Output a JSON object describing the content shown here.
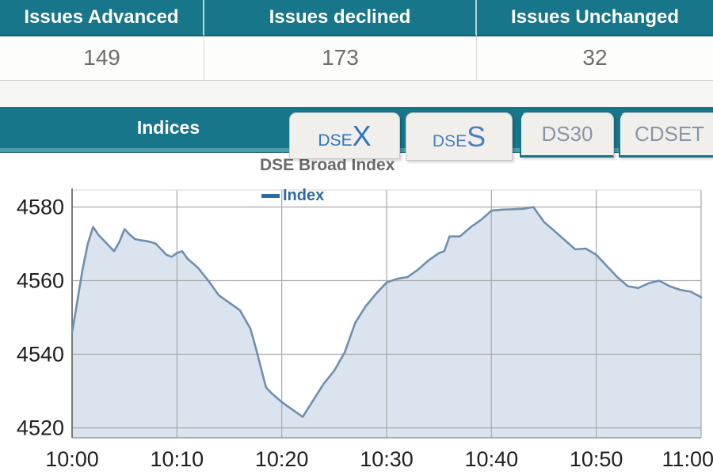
{
  "issues_table": {
    "columns": [
      {
        "header": "Issues Advanced",
        "value": "149"
      },
      {
        "header": "Issues declined",
        "value": "173"
      },
      {
        "header": "Issues Unchanged",
        "value": "32"
      }
    ]
  },
  "indices": {
    "bar_label": "Indices",
    "tabs": [
      {
        "label": "DSEX",
        "prefix": "DSE",
        "big": "X",
        "active": true
      },
      {
        "label": "DSES",
        "prefix": "DSE",
        "big": "S",
        "active": false
      },
      {
        "label": "DS30",
        "active": false
      },
      {
        "label": "CDSET",
        "active": false
      }
    ]
  },
  "chart_data": {
    "type": "area",
    "title": "DSE Broad Index",
    "legend_label": "Index",
    "legend_position": "top-left-inside",
    "grid": true,
    "xlabel": "",
    "ylabel": "",
    "x_tick_labels": [
      "10:00",
      "10:10",
      "10:20",
      "10:30",
      "10:40",
      "10:50",
      "11:00"
    ],
    "x_tick_minutes": [
      0,
      10,
      20,
      30,
      40,
      50,
      60
    ],
    "y_ticks": [
      4520,
      4540,
      4560,
      4580
    ],
    "ylim": [
      4516.5,
      4584.5
    ],
    "xlim_minutes": [
      0,
      60
    ],
    "series": [
      {
        "name": "Index",
        "points": [
          [
            0,
            4546
          ],
          [
            0.3,
            4551
          ],
          [
            0.7,
            4558
          ],
          [
            1,
            4563
          ],
          [
            1.5,
            4570
          ],
          [
            2,
            4574.6
          ],
          [
            2.5,
            4572.5
          ],
          [
            3,
            4571
          ],
          [
            3.5,
            4569.5
          ],
          [
            4,
            4568
          ],
          [
            4.5,
            4570.5
          ],
          [
            5,
            4574
          ],
          [
            5.5,
            4572.5
          ],
          [
            6,
            4571.3
          ],
          [
            6.5,
            4571
          ],
          [
            7,
            4570.8
          ],
          [
            7.5,
            4570.5
          ],
          [
            8,
            4570
          ],
          [
            8.5,
            4568.5
          ],
          [
            9,
            4567
          ],
          [
            9.5,
            4566.5
          ],
          [
            10,
            4567.5
          ],
          [
            10.5,
            4568
          ],
          [
            11,
            4566
          ],
          [
            12,
            4563.5
          ],
          [
            13,
            4560
          ],
          [
            14,
            4556
          ],
          [
            15,
            4554
          ],
          [
            16,
            4552
          ],
          [
            17,
            4547
          ],
          [
            17.5,
            4542
          ],
          [
            18,
            4536.5
          ],
          [
            18.5,
            4531
          ],
          [
            19,
            4529.5
          ],
          [
            20,
            4527
          ],
          [
            21,
            4525
          ],
          [
            22,
            4523
          ],
          [
            23,
            4527.5
          ],
          [
            24,
            4532
          ],
          [
            25,
            4535.5
          ],
          [
            26,
            4540.5
          ],
          [
            27,
            4548.5
          ],
          [
            28,
            4553
          ],
          [
            29,
            4556.5
          ],
          [
            30,
            4559.5
          ],
          [
            31,
            4560.5
          ],
          [
            32,
            4561
          ],
          [
            33,
            4563
          ],
          [
            34,
            4565.5
          ],
          [
            35,
            4567.5
          ],
          [
            35.5,
            4568
          ],
          [
            36,
            4572
          ],
          [
            37,
            4572
          ],
          [
            38,
            4574.5
          ],
          [
            39,
            4576.5
          ],
          [
            40,
            4579
          ],
          [
            41,
            4579.3
          ],
          [
            42,
            4579.4
          ],
          [
            43,
            4579.5
          ],
          [
            44,
            4580
          ],
          [
            45,
            4576
          ],
          [
            46,
            4573.5
          ],
          [
            47,
            4571
          ],
          [
            48,
            4568.5
          ],
          [
            49,
            4568.7
          ],
          [
            50,
            4567
          ],
          [
            51,
            4564
          ],
          [
            52,
            4561
          ],
          [
            53,
            4558.5
          ],
          [
            54,
            4558
          ],
          [
            55,
            4559.3
          ],
          [
            56,
            4560
          ],
          [
            57,
            4558.5
          ],
          [
            58,
            4557.5
          ],
          [
            59,
            4557
          ],
          [
            60,
            4555.5
          ]
        ]
      }
    ]
  },
  "colors": {
    "teal": "#17768a",
    "teal_light": "#4c9aab",
    "teal_dark": "#0d5968",
    "line": "#6f8fae",
    "fill": "#dbe3ee",
    "legend_blue": "#2f6a9e",
    "tab_active_text": "#2e74c4",
    "tab_inactive_text": "#8796a6",
    "title_gray": "#6a6a6a",
    "axis_text": "#1f1f1f",
    "grid": "#a8a8a8",
    "axis_line": "#7a7a7a"
  }
}
